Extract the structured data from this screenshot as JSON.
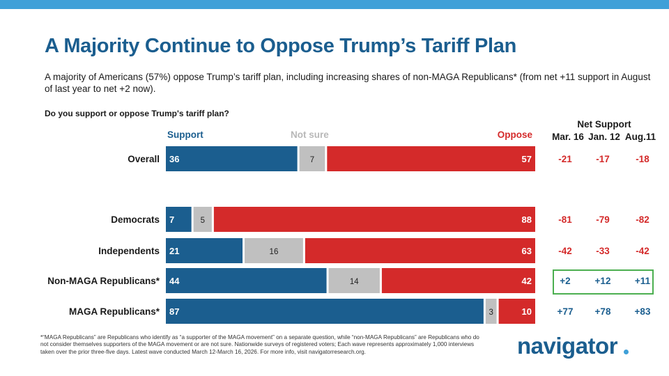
{
  "title": "A Majority Continue to Oppose Trump’s Tariff Plan",
  "subtitle": "A majority of Americans (57%) oppose Trump’s tariff plan, including increasing shares of non-MAGA Republicans* (from net +11 support in August of last year to net +2 now).",
  "question": "Do you support or oppose Trump's tariff plan?",
  "colors": {
    "support": "#1b5e8f",
    "not_sure": "#c0c0c0",
    "oppose": "#d42a2a",
    "net_positive": "#1b5e8f",
    "net_negative": "#d42a2a",
    "highlight": "#4caf50",
    "topbar": "#3fa0d8"
  },
  "chart_data": {
    "type": "bar",
    "orientation": "horizontal-stacked",
    "categories": [
      "Overall",
      "Democrats",
      "Independents",
      "Non-MAGA Republicans*",
      "MAGA Republicans*"
    ],
    "series": [
      {
        "name": "Support",
        "values": [
          36,
          7,
          21,
          44,
          87
        ]
      },
      {
        "name": "Not sure",
        "values": [
          7,
          5,
          16,
          14,
          3
        ]
      },
      {
        "name": "Oppose",
        "values": [
          57,
          88,
          63,
          42,
          10
        ]
      }
    ]
  },
  "net_support": {
    "title": "Net Support",
    "columns": [
      "Mar. 16",
      "Jan. 12",
      "Aug.11"
    ],
    "rows": [
      [
        "-21",
        "-17",
        "-18"
      ],
      [
        "-81",
        "-79",
        "-82"
      ],
      [
        "-42",
        "-33",
        "-42"
      ],
      [
        "+2",
        "+12",
        "+11"
      ],
      [
        "+77",
        "+78",
        "+83"
      ]
    ],
    "highlighted_row": "Non-MAGA Republicans*"
  },
  "footnote": "*“MAGA Republicans” are Republicans who identify as “a supporter of the MAGA movement” on a separate question, while “non-MAGA Republicans” are Republicans who do not consider themselves supporters of the MAGA movement or are not sure. Nationwide surveys of registered voters; Each wave represents approximately 1,000 interviews taken over the prior three-five days. Latest wave conducted March 12-March 16, 2026. For more info, visit navigatorresearch.org.",
  "logo": "navigator"
}
